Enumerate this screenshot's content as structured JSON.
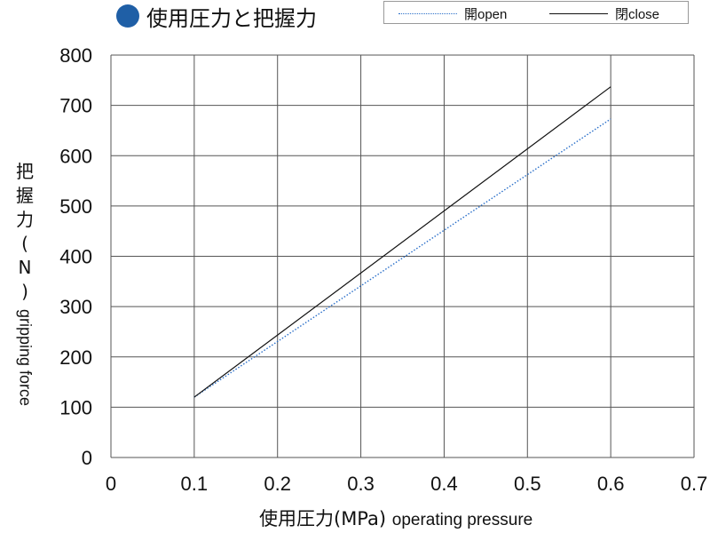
{
  "title": "使用圧力と把握力",
  "chart_data": {
    "type": "line",
    "xlabel_cjk": "使用圧力(MPa)",
    "xlabel_en": "operating pressure",
    "ylabel_cjk": [
      "把",
      "握",
      "力",
      "(",
      "N",
      ")"
    ],
    "ylabel_en": "gripping force",
    "xlim": [
      0,
      0.7
    ],
    "ylim": [
      0,
      800
    ],
    "x_ticks": [
      "0",
      "0.1",
      "0.2",
      "0.3",
      "0.4",
      "0.5",
      "0.6",
      "0.7"
    ],
    "y_ticks": [
      "0",
      "100",
      "200",
      "300",
      "400",
      "500",
      "600",
      "700",
      "800"
    ],
    "grid": true,
    "legend_position": "top-right",
    "series": [
      {
        "name": "開open",
        "style": "dotted",
        "color": "#2a6fc9",
        "x": [
          0.1,
          0.6
        ],
        "y": [
          120,
          673
        ]
      },
      {
        "name": "閉close",
        "style": "solid",
        "color": "#111111",
        "x": [
          0.1,
          0.6
        ],
        "y": [
          120,
          737
        ]
      }
    ]
  }
}
